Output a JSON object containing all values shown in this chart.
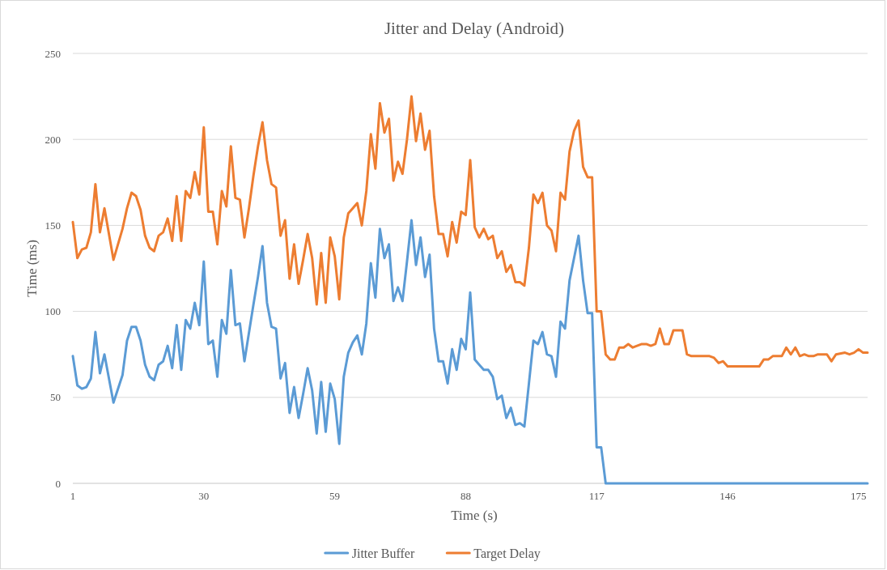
{
  "chart_data": {
    "type": "line",
    "title": "Jitter and Delay (Android)",
    "xlabel": "Time (s)",
    "ylabel": "Time (ms)",
    "xlim": [
      1,
      177
    ],
    "xticks": [
      1,
      30,
      59,
      88,
      117,
      146,
      175
    ],
    "ylim": [
      0,
      250
    ],
    "yticks": [
      0,
      50,
      100,
      150,
      200,
      250
    ],
    "grid": "y",
    "legend": "bottom",
    "series": [
      {
        "name": "Jitter Buffer",
        "color": "#5b9bd5",
        "x": [
          1,
          2,
          3,
          4,
          5,
          6,
          7,
          8,
          10,
          12,
          13,
          14,
          15,
          16,
          17,
          18,
          19,
          20,
          21,
          22,
          23,
          24,
          25,
          26,
          27,
          28,
          29,
          30,
          31,
          32,
          33,
          34,
          35,
          36,
          37,
          38,
          39,
          41,
          42,
          43,
          44,
          45,
          46,
          47,
          48,
          49,
          50,
          51,
          52,
          53,
          54,
          55,
          56,
          57,
          58,
          59,
          60,
          61,
          62,
          63,
          64,
          65,
          66,
          67,
          68,
          69,
          70,
          71,
          72,
          73,
          74,
          75,
          76,
          77,
          78,
          79,
          80,
          81,
          82,
          83,
          84,
          85,
          86,
          87,
          88,
          89,
          90,
          91,
          92,
          93,
          94,
          95,
          96,
          97,
          98,
          99,
          100,
          101,
          102,
          103,
          104,
          105,
          106,
          107,
          108,
          109,
          110,
          111,
          112,
          113,
          114,
          115,
          116,
          117,
          118,
          119,
          177
        ],
        "values": [
          74,
          57,
          55,
          56,
          61,
          88,
          64,
          75,
          47,
          63,
          83,
          91,
          91,
          83,
          69,
          62,
          60,
          69,
          71,
          80,
          67,
          92,
          66,
          95,
          90,
          105,
          92,
          129,
          81,
          83,
          62,
          95,
          87,
          124,
          92,
          93,
          71,
          104,
          120,
          138,
          105,
          91,
          90,
          61,
          70,
          41,
          56,
          38,
          52,
          67,
          54,
          29,
          59,
          30,
          58,
          49,
          23,
          62,
          76,
          82,
          86,
          75,
          93,
          128,
          108,
          148,
          131,
          139,
          106,
          114,
          106,
          129,
          153,
          127,
          143,
          120,
          133,
          90,
          71,
          71,
          58,
          78,
          66,
          84,
          78,
          111,
          72,
          69,
          66,
          66,
          62,
          49,
          51,
          38,
          44,
          34,
          35,
          33,
          58,
          83,
          81,
          88,
          75,
          74,
          62,
          94,
          90,
          118,
          131,
          144,
          118,
          99,
          99,
          21,
          21,
          0,
          0
        ]
      },
      {
        "name": "Target Delay",
        "color": "#ed7d31",
        "x": [
          1,
          2,
          3,
          4,
          5,
          6,
          7,
          8,
          10,
          12,
          13,
          14,
          15,
          16,
          17,
          18,
          19,
          20,
          21,
          22,
          23,
          24,
          25,
          26,
          27,
          28,
          29,
          30,
          31,
          32,
          33,
          34,
          35,
          36,
          37,
          38,
          39,
          40,
          41,
          42,
          43,
          44,
          45,
          46,
          47,
          48,
          49,
          50,
          51,
          52,
          53,
          54,
          55,
          56,
          57,
          58,
          59,
          60,
          61,
          62,
          63,
          64,
          65,
          66,
          67,
          68,
          69,
          70,
          71,
          72,
          73,
          74,
          75,
          76,
          77,
          78,
          79,
          80,
          81,
          82,
          83,
          84,
          85,
          86,
          87,
          88,
          89,
          90,
          91,
          92,
          93,
          94,
          95,
          96,
          97,
          98,
          99,
          100,
          101,
          102,
          103,
          104,
          105,
          106,
          107,
          108,
          109,
          110,
          111,
          112,
          113,
          114,
          115,
          116,
          117,
          118,
          119,
          120,
          121,
          122,
          123,
          124,
          125,
          127,
          128,
          129,
          130,
          131,
          132,
          133,
          134,
          136,
          137,
          138,
          142,
          143,
          144,
          145,
          146,
          153,
          154,
          155,
          156,
          158,
          159,
          160,
          161,
          162,
          163,
          164,
          165,
          166,
          168,
          169,
          170,
          172,
          173,
          174,
          175,
          176,
          177
        ],
        "values": [
          152,
          131,
          136,
          137,
          146,
          174,
          146,
          160,
          130,
          148,
          160,
          169,
          167,
          159,
          144,
          137,
          135,
          144,
          146,
          154,
          141,
          167,
          141,
          170,
          166,
          181,
          168,
          207,
          158,
          158,
          139,
          170,
          161,
          196,
          166,
          165,
          143,
          160,
          179,
          196,
          210,
          188,
          174,
          172,
          144,
          153,
          119,
          139,
          116,
          130,
          145,
          131,
          104,
          134,
          105,
          143,
          132,
          107,
          143,
          157,
          160,
          163,
          150,
          170,
          203,
          183,
          221,
          204,
          212,
          176,
          187,
          180,
          200,
          225,
          199,
          215,
          194,
          205,
          167,
          145,
          145,
          132,
          152,
          140,
          158,
          156,
          188,
          149,
          143,
          148,
          142,
          144,
          131,
          135,
          123,
          127,
          117,
          117,
          115,
          137,
          168,
          163,
          169,
          150,
          147,
          135,
          169,
          165,
          193,
          205,
          211,
          184,
          178,
          178,
          100,
          100,
          75,
          72,
          72,
          79,
          79,
          81,
          79,
          81,
          81,
          80,
          81,
          90,
          81,
          81,
          89,
          89,
          75,
          74,
          74,
          73,
          70,
          71,
          68,
          68,
          72,
          72,
          74,
          74,
          79,
          75,
          79,
          74,
          75,
          74,
          74,
          75,
          75,
          71,
          75,
          76,
          75,
          76,
          78,
          76,
          76
        ]
      }
    ]
  }
}
